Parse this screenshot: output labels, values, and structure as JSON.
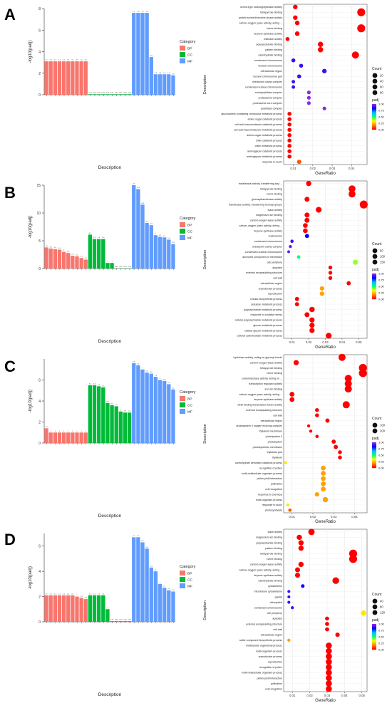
{
  "panels": [
    {
      "letter": "A"
    },
    {
      "letter": "B"
    },
    {
      "letter": "C"
    },
    {
      "letter": "D"
    }
  ],
  "colors": {
    "BP": "#f8766d",
    "CC": "#00ba38",
    "MF": "#619cff",
    "padj_scale": [
      "#ff0000",
      "#ff8c00",
      "#ffff00",
      "#00ff7f",
      "#00bfff",
      "#0000ff",
      "#8a2be2"
    ]
  },
  "chart_data": [
    {
      "panel": "A",
      "type": "bar",
      "ylabel": "-log10(padj)",
      "xlabel": "Description",
      "ylim": [
        0,
        8
      ],
      "yticks": [
        0,
        2,
        4,
        6,
        8
      ],
      "legend": {
        "title": "Category",
        "items": [
          "BP",
          "CC",
          "MF"
        ]
      },
      "categories": [
        "A1",
        "A2",
        "A3",
        "A4",
        "A5",
        "A6",
        "A7",
        "A8",
        "A9",
        "A10",
        "A11",
        "A12",
        "A13",
        "A14",
        "A15",
        "A16",
        "A17",
        "A18",
        "A19",
        "A20",
        "A21",
        "A22",
        "A23",
        "A24",
        "A25",
        "A26",
        "A27",
        "A28",
        "A29",
        "A30"
      ],
      "groups": [
        "BP",
        "BP",
        "BP",
        "BP",
        "BP",
        "BP",
        "BP",
        "BP",
        "BP",
        "BP",
        "CC",
        "CC",
        "CC",
        "CC",
        "CC",
        "CC",
        "CC",
        "CC",
        "CC",
        "CC",
        "MF",
        "MF",
        "MF",
        "MF",
        "MF",
        "MF",
        "MF",
        "MF",
        "MF",
        "MF"
      ],
      "values": [
        3.1,
        3.1,
        3.1,
        3.1,
        3.1,
        3.1,
        3.1,
        3.1,
        3.1,
        3.1,
        0.05,
        0.05,
        0.05,
        0.05,
        0.05,
        0.05,
        0.05,
        0.05,
        0.05,
        0.05,
        7.6,
        7.6,
        7.6,
        7.6,
        3.5,
        1.9,
        1.9,
        1.9,
        1.9,
        1.8
      ]
    },
    {
      "panel": "A",
      "type": "scatter",
      "xlabel": "GeneRatio",
      "ylabel": "Description",
      "xlim": [
        0.005,
        0.048
      ],
      "xticks": [
        0.01,
        0.02,
        0.03,
        0.04
      ],
      "size_legend": {
        "title": "Count",
        "values": [
          20,
          40,
          60,
          80
        ]
      },
      "color_legend": {
        "title": "padj",
        "ticks": [
          1.0,
          0.75,
          0.5,
          0.25,
          0.0
        ]
      },
      "terms": [
        "serine-type carboxypeptidase activity",
        "tetrapyrrole binding",
        "protein serine/threonine kinase activity",
        "carbon-oxygen lyase activity, acting ...",
        "heme binding",
        "terpene synthase activity",
        "chitinase activity",
        "polysaccharide binding",
        "pattern binding",
        "carbohydrate binding",
        "condensed chromosome",
        "nuclear chromosome",
        "extracellular region",
        "nuclear chromosome part",
        "checkpoint clamp complex",
        "condensed nuclear chromosome",
        "endopeptidase complex",
        "proteasome complex",
        "proteasome core complex",
        "peptidase complex",
        "glucosamine-containing compound metabolic process",
        "amino sugar catabolic process",
        "cell wall macromolecule catabolic process",
        "cell wall macromolecule metabolic process",
        "amino sugar metabolic process",
        "chitin catabolic process",
        "chitin metabolic process",
        "aminoglycan catabolic process",
        "aminoglycan metabolic process",
        "response to auxin"
      ],
      "x": [
        0.011,
        0.045,
        0.011,
        0.012,
        0.045,
        0.012,
        0.007,
        0.024,
        0.024,
        0.042,
        0.01,
        0.014,
        0.026,
        0.013,
        0.01,
        0.01,
        0.018,
        0.018,
        0.018,
        0.026,
        0.008,
        0.008,
        0.008,
        0.008,
        0.008,
        0.008,
        0.008,
        0.008,
        0.008,
        0.013
      ],
      "count": [
        12,
        60,
        12,
        13,
        60,
        13,
        8,
        20,
        20,
        45,
        8,
        8,
        12,
        8,
        5,
        5,
        6,
        6,
        6,
        6,
        8,
        8,
        8,
        8,
        8,
        8,
        8,
        8,
        8,
        10
      ],
      "padj": [
        0.0,
        0.0,
        0.0,
        0.0,
        0.0,
        0.0,
        0.0,
        0.0,
        0.0,
        0.0,
        0.9,
        0.9,
        0.9,
        0.9,
        0.9,
        0.9,
        1.0,
        1.0,
        1.0,
        1.0,
        0.0,
        0.0,
        0.0,
        0.0,
        0.0,
        0.0,
        0.0,
        0.0,
        0.0,
        0.1
      ]
    },
    {
      "panel": "B",
      "type": "bar",
      "ylabel": "-log10(padj)",
      "xlabel": "Description",
      "ylim": [
        0,
        15
      ],
      "yticks": [
        0,
        5,
        10,
        15
      ],
      "legend": {
        "title": "Category",
        "items": [
          "BP",
          "CC",
          "MF"
        ]
      },
      "categories": [
        "B1",
        "B2",
        "B3",
        "B4",
        "B5",
        "B6",
        "B7",
        "B8",
        "B9",
        "B10",
        "B11",
        "B12",
        "B13",
        "B14",
        "B15",
        "B16",
        "B17",
        "B18",
        "B19",
        "B20",
        "B21",
        "B22",
        "B23",
        "B24",
        "B25",
        "B26",
        "B27",
        "B28",
        "B29",
        "B30"
      ],
      "groups": [
        "BP",
        "BP",
        "BP",
        "BP",
        "BP",
        "BP",
        "BP",
        "BP",
        "BP",
        "BP",
        "CC",
        "CC",
        "CC",
        "CC",
        "CC",
        "CC",
        "CC",
        "CC",
        "CC",
        "CC",
        "MF",
        "MF",
        "MF",
        "MF",
        "MF",
        "MF",
        "MF",
        "MF",
        "MF",
        "MF"
      ],
      "values": [
        3.8,
        3.6,
        3.5,
        3.4,
        3.0,
        2.8,
        2.3,
        2.2,
        1.9,
        1.6,
        6.1,
        5.3,
        5.3,
        5.3,
        1.0,
        1.0,
        0.05,
        0.05,
        0.05,
        0.05,
        15.0,
        14.3,
        11.5,
        8.2,
        7.8,
        6.0,
        5.7,
        5.6,
        5.2,
        4.4
      ]
    },
    {
      "panel": "B",
      "type": "scatter",
      "xlabel": "GeneRatio",
      "ylabel": "Description",
      "xlim": [
        0.005,
        0.055
      ],
      "xticks": [
        0.01,
        0.02,
        0.03,
        0.04,
        0.05
      ],
      "size_legend": {
        "title": "Count",
        "values": [
          50,
          100,
          150
        ]
      },
      "color_legend": {
        "title": "padj",
        "ticks": [
          1.0,
          0.75,
          0.5,
          0.25,
          0.0
        ]
      },
      "terms": [
        "transferase activity, transferring acyl ...",
        "tetrapyrrole binding",
        "heme binding",
        "glucosyltransferase activity",
        "transferase activity, transferring hexosyl groups",
        "lyase activity",
        "magnesium ion binding",
        "carbon-oxygen lyase activity",
        "carbon-oxygen lyase activity, acting ...",
        "terpene synthase activity",
        "nucleosome",
        "condensed chromosome",
        "checkpoint clamp complex",
        "condensed nuclear chromosome",
        "anchored component of membrane",
        "cell periphery",
        "apoplast",
        "external encapsulating structure",
        "cell wall",
        "extracellular region",
        "reproductive process",
        "reproduction",
        "cellular biosynthetic process",
        "cellulose metabolic process",
        "polysaccharide metabolic process",
        "response to oxidative stress",
        "cellular polysaccharide metabolic process",
        "glucan metabolic process",
        "cellular glucan metabolic process",
        "cellular carbohydrate metabolic process"
      ],
      "x": [
        0.02,
        0.046,
        0.046,
        0.019,
        0.053,
        0.026,
        0.019,
        0.019,
        0.018,
        0.018,
        0.019,
        0.01,
        0.009,
        0.008,
        0.014,
        0.048,
        0.033,
        0.033,
        0.033,
        0.044,
        0.028,
        0.028,
        0.013,
        0.013,
        0.022,
        0.019,
        0.022,
        0.022,
        0.022,
        0.032
      ],
      "count": [
        40,
        90,
        90,
        35,
        130,
        55,
        35,
        35,
        30,
        30,
        20,
        8,
        6,
        5,
        10,
        40,
        15,
        15,
        15,
        20,
        25,
        25,
        20,
        20,
        45,
        35,
        40,
        40,
        40,
        55
      ],
      "padj": [
        0.0,
        0.0,
        0.0,
        0.0,
        0.0,
        0.0,
        0.0,
        0.0,
        0.0,
        0.0,
        0.85,
        0.9,
        0.95,
        0.95,
        0.5,
        0.4,
        0.0,
        0.0,
        0.0,
        0.0,
        0.2,
        0.2,
        0.0,
        0.0,
        0.0,
        0.0,
        0.0,
        0.0,
        0.0,
        0.0
      ]
    },
    {
      "panel": "C",
      "type": "bar",
      "ylabel": "-log10(padj)",
      "xlabel": "Description",
      "ylim": [
        0,
        8
      ],
      "yticks": [
        0,
        2,
        4,
        6
      ],
      "legend": {
        "title": "Category",
        "items": [
          "BP",
          "CC",
          "MF"
        ]
      },
      "categories": [
        "C1",
        "C2",
        "C3",
        "C4",
        "C5",
        "C6",
        "C7",
        "C8",
        "C9",
        "C10",
        "C11",
        "C12",
        "C13",
        "C14",
        "C15",
        "C16",
        "C17",
        "C18",
        "C19",
        "C20",
        "C21",
        "C22",
        "C23",
        "C24",
        "C25",
        "C26",
        "C27",
        "C28",
        "C29",
        "C30"
      ],
      "groups": [
        "BP",
        "BP",
        "BP",
        "BP",
        "BP",
        "BP",
        "BP",
        "BP",
        "BP",
        "BP",
        "CC",
        "CC",
        "CC",
        "CC",
        "CC",
        "CC",
        "CC",
        "CC",
        "CC",
        "CC",
        "MF",
        "MF",
        "MF",
        "MF",
        "MF",
        "MF",
        "MF",
        "MF",
        "MF",
        "MF"
      ],
      "values": [
        1.4,
        1.0,
        1.0,
        1.0,
        1.0,
        1.0,
        1.0,
        1.0,
        1.0,
        1.0,
        5.5,
        5.5,
        5.4,
        5.3,
        3.8,
        3.6,
        3.5,
        3.0,
        2.9,
        2.9,
        7.6,
        7.4,
        7.0,
        6.7,
        6.6,
        6.3,
        6.0,
        5.9,
        5.6,
        5.1
      ]
    },
    {
      "panel": "C",
      "type": "scatter",
      "xlabel": "GeneRatio",
      "ylabel": "Description",
      "xlim": [
        0.006,
        0.046
      ],
      "xticks": [
        0.01,
        0.02,
        0.03,
        0.04
      ],
      "size_legend": {
        "title": "Count",
        "values": [
          100,
          200
        ]
      },
      "color_legend": {
        "title": "padj",
        "ticks": [
          1.0,
          0.75,
          0.5,
          0.25,
          0.0
        ]
      },
      "terms": [
        "hydrolase activity, acting on glycosyl bonds",
        "carbon-oxygen lyase activity",
        "tetrapyrrole binding",
        "heme binding",
        "oxidoreductase activity, acting on ...",
        "transcription regulator activity",
        "iron ion binding",
        "carbon-oxygen lyase activity, acting ...",
        "terpene synthase activity",
        "DNA binding transcription factor activity",
        "external encapsulating structure",
        "cell wall",
        "extracellular region",
        "photosystem II oxygen evolving complex",
        "thylakoid membrane",
        "photosystem II",
        "photosystem",
        "photosynthetic membrane",
        "thylakoid part",
        "thylakoid",
        "carbohydrate derivative catabolic process",
        "recognition of pollen",
        "multi-multicellular organism process",
        "pollen-pistil interaction",
        "pollination",
        "cell recognition",
        "response to chemical",
        "multi-organism process",
        "response to auxin",
        "photosynthesis"
      ],
      "x": [
        0.034,
        0.012,
        0.044,
        0.044,
        0.037,
        0.037,
        0.037,
        0.01,
        0.01,
        0.036,
        0.022,
        0.022,
        0.027,
        0.018,
        0.019,
        0.022,
        0.03,
        0.031,
        0.033,
        0.033,
        0.007,
        0.025,
        0.025,
        0.025,
        0.025,
        0.025,
        0.022,
        0.026,
        0.008,
        0.009
      ],
      "count": [
        120,
        50,
        160,
        160,
        120,
        120,
        120,
        40,
        40,
        120,
        20,
        20,
        25,
        8,
        8,
        10,
        25,
        25,
        20,
        20,
        6,
        40,
        40,
        40,
        40,
        40,
        30,
        55,
        8,
        10
      ],
      "padj": [
        0.0,
        0.0,
        0.0,
        0.0,
        0.0,
        0.0,
        0.0,
        0.0,
        0.0,
        0.0,
        0.0,
        0.0,
        0.0,
        0.0,
        0.0,
        0.0,
        0.0,
        0.0,
        0.0,
        0.0,
        0.3,
        0.2,
        0.2,
        0.2,
        0.2,
        0.2,
        0.2,
        0.2,
        0.3,
        0.1
      ]
    },
    {
      "panel": "D",
      "type": "bar",
      "ylabel": "-log10(padj)",
      "xlabel": "Description",
      "ylim": [
        0,
        7
      ],
      "yticks": [
        0,
        2,
        4,
        6
      ],
      "legend": {
        "title": "Category",
        "items": [
          "BP",
          "CC",
          "MF"
        ]
      },
      "categories": [
        "D1",
        "D2",
        "D3",
        "D4",
        "D5",
        "D6",
        "D7",
        "D8",
        "D9",
        "D10",
        "D11",
        "D12",
        "D13",
        "D14",
        "D15",
        "D16",
        "D17",
        "D18",
        "D19",
        "D20",
        "D21",
        "D22",
        "D23",
        "D24",
        "D25",
        "D26",
        "D27",
        "D28",
        "D29",
        "D30"
      ],
      "groups": [
        "BP",
        "BP",
        "BP",
        "BP",
        "BP",
        "BP",
        "BP",
        "BP",
        "BP",
        "BP",
        "CC",
        "CC",
        "CC",
        "CC",
        "CC",
        "CC",
        "CC",
        "CC",
        "CC",
        "CC",
        "MF",
        "MF",
        "MF",
        "MF",
        "MF",
        "MF",
        "MF",
        "MF",
        "MF",
        "MF"
      ],
      "values": [
        2.1,
        2.1,
        2.1,
        2.1,
        2.1,
        2.1,
        2.1,
        2.0,
        1.9,
        1.8,
        2.1,
        2.1,
        2.1,
        2.1,
        1.0,
        0.05,
        0.05,
        0.05,
        0.05,
        0.05,
        6.7,
        6.7,
        6.3,
        5.8,
        4.3,
        4.0,
        3.0,
        2.7,
        2.5,
        2.4
      ]
    },
    {
      "panel": "D",
      "type": "scatter",
      "xlabel": "GeneRatio",
      "ylabel": "Description",
      "xlim": [
        0.005,
        0.053
      ],
      "xticks": [
        0.01,
        0.02,
        0.03,
        0.04,
        0.05
      ],
      "size_legend": {
        "title": "Count",
        "values": [
          40,
          80,
          120
        ]
      },
      "color_legend": {
        "title": "padj",
        "ticks": [
          1.0,
          0.75,
          0.5,
          0.25,
          0.0
        ]
      },
      "terms": [
        "lyase activity",
        "magnesium ion binding",
        "polysaccharide binding",
        "pattern binding",
        "tetrapyrrole binding",
        "heme binding",
        "carbon-oxygen lyase activity",
        "carbon-oxygen lyase activity, acting ...",
        "terpene synthase activity",
        "carbohydrate binding",
        "cytoskeleton",
        "microtubule cytoskeleton",
        "plastid",
        "chloroplast",
        "condensed chromosome",
        "cell periphery",
        "apoplast",
        "external encapsulating structure",
        "cell wall",
        "extracellular region",
        "sulfur compound biosynthetic process",
        "multicellular organismal process",
        "multi-organism process",
        "reproductive process",
        "reproduction",
        "recognition of pollen",
        "multi-multicellular organism process",
        "pollen-pistil interaction",
        "pollination",
        "cell recognition"
      ],
      "x": [
        0.021,
        0.014,
        0.015,
        0.015,
        0.045,
        0.045,
        0.015,
        0.013,
        0.013,
        0.035,
        0.016,
        0.008,
        0.008,
        0.008,
        0.01,
        0.051,
        0.03,
        0.03,
        0.03,
        0.036,
        0.008,
        0.031,
        0.031,
        0.031,
        0.031,
        0.031,
        0.031,
        0.031,
        0.031,
        0.031
      ],
      "count": [
        60,
        35,
        35,
        35,
        110,
        110,
        35,
        30,
        30,
        70,
        10,
        4,
        4,
        4,
        5,
        40,
        15,
        15,
        15,
        20,
        6,
        55,
        55,
        55,
        55,
        55,
        55,
        55,
        55,
        55
      ],
      "padj": [
        0.0,
        0.0,
        0.0,
        0.0,
        0.0,
        0.0,
        0.0,
        0.0,
        0.0,
        0.0,
        0.85,
        0.9,
        0.9,
        0.9,
        0.9,
        0.3,
        0.0,
        0.0,
        0.0,
        0.0,
        0.2,
        0.0,
        0.0,
        0.0,
        0.0,
        0.0,
        0.0,
        0.0,
        0.0,
        0.0
      ]
    }
  ]
}
